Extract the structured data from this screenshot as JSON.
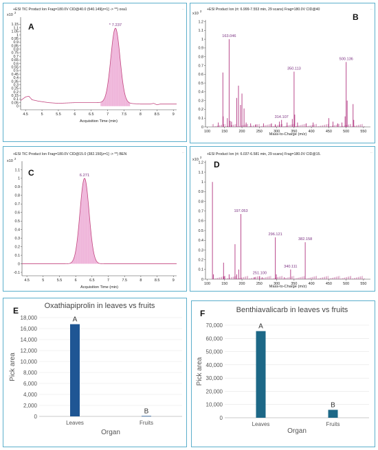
{
  "chart_data": [
    {
      "panel": "A",
      "type": "area",
      "header": "+ESI TIC Product Ion Frag=180.0V CID@40.0 (540.149[z=1] -> **) oxa1",
      "y_multiplier": "x10",
      "y_exponent": "2",
      "xlabel": "Acquisition Time (min)",
      "xlim": [
        4.35,
        9.1
      ],
      "ylim": [
        -0.05,
        1.25
      ],
      "x_ticks": [
        "4.5",
        "5",
        "5.5",
        "6",
        "6.5",
        "7",
        "7.5",
        "8",
        "8.5",
        "9"
      ],
      "y_ticks": [
        "0",
        "0.05",
        "0.1",
        "0.15",
        "0.2",
        "0.25",
        "0.3",
        "0.35",
        "0.4",
        "0.45",
        "0.5",
        "0.55",
        "0.6",
        "0.65",
        "0.7",
        "0.75",
        "0.8",
        "0.85",
        "0.9",
        "0.95",
        "1",
        "1.05",
        "1.1",
        "1.15"
      ],
      "peak_label": "* 7.237",
      "peak": {
        "center": 7.237,
        "height": 1.05,
        "sigma": 0.14
      },
      "baseline": [
        [
          4.35,
          0.08
        ],
        [
          4.5,
          0.13
        ],
        [
          4.6,
          0.14
        ],
        [
          4.7,
          0.09
        ],
        [
          4.9,
          0.07
        ],
        [
          5.2,
          0.05
        ],
        [
          5.5,
          0.04
        ],
        [
          6.0,
          0.05
        ],
        [
          6.5,
          0.05
        ],
        [
          6.9,
          0.05
        ],
        [
          7.6,
          0.04
        ],
        [
          8.0,
          0.03
        ],
        [
          8.3,
          0.03
        ],
        [
          8.4,
          0.04
        ],
        [
          8.5,
          0.02
        ],
        [
          8.6,
          0.03
        ],
        [
          9.1,
          0.03
        ]
      ]
    },
    {
      "panel": "B",
      "type": "bar",
      "header": "+ESI Product Ion (rt: 6.999-7.553 min, 29 scans) Frag=180.0V CID@40",
      "y_multiplier": "x10",
      "y_exponent": "2",
      "xlabel": "Mass-to-Charge (m/z)",
      "xlim": [
        95,
        570
      ],
      "ylim": [
        0,
        1.22
      ],
      "x_ticks": [
        "100",
        "150",
        "200",
        "250",
        "300",
        "350",
        "400",
        "450",
        "500",
        "550"
      ],
      "y_ticks": [
        "0",
        "0.1",
        "0.2",
        "0.3",
        "0.4",
        "0.5",
        "0.6",
        "0.7",
        "0.8",
        "0.9",
        "1",
        "1.1",
        "1.2"
      ],
      "peaks": [
        {
          "mz": 163.046,
          "i": 1.0,
          "label": "163.046"
        },
        {
          "mz": 350.113,
          "i": 0.63,
          "label": "350.113"
        },
        {
          "mz": 314.107,
          "i": 0.08,
          "label": "314.107"
        },
        {
          "mz": 500.136,
          "i": 0.74,
          "label": "500.136"
        },
        {
          "mz": 145.0,
          "i": 0.62
        },
        {
          "mz": 146.0,
          "i": 0.12
        },
        {
          "mz": 132.0,
          "i": 0.05
        },
        {
          "mz": 158.0,
          "i": 0.1
        },
        {
          "mz": 166.0,
          "i": 0.07
        },
        {
          "mz": 170.0,
          "i": 0.06
        },
        {
          "mz": 185.0,
          "i": 0.33
        },
        {
          "mz": 190.0,
          "i": 0.47
        },
        {
          "mz": 196.0,
          "i": 0.25
        },
        {
          "mz": 200.0,
          "i": 0.38
        },
        {
          "mz": 206.0,
          "i": 0.21
        },
        {
          "mz": 212.0,
          "i": 0.05
        },
        {
          "mz": 225.0,
          "i": 0.04
        },
        {
          "mz": 240.0,
          "i": 0.03
        },
        {
          "mz": 262.0,
          "i": 0.04
        },
        {
          "mz": 285.0,
          "i": 0.04
        },
        {
          "mz": 296.0,
          "i": 0.03
        },
        {
          "mz": 308.0,
          "i": 0.06
        },
        {
          "mz": 330.0,
          "i": 0.05
        },
        {
          "mz": 345.0,
          "i": 0.09
        },
        {
          "mz": 352.0,
          "i": 0.14
        },
        {
          "mz": 360.0,
          "i": 0.05
        },
        {
          "mz": 385.0,
          "i": 0.04
        },
        {
          "mz": 405.0,
          "i": 0.05
        },
        {
          "mz": 450.0,
          "i": 0.1
        },
        {
          "mz": 462.0,
          "i": 0.06
        },
        {
          "mz": 476.0,
          "i": 0.04
        },
        {
          "mz": 488.0,
          "i": 0.05
        },
        {
          "mz": 497.0,
          "i": 0.12
        },
        {
          "mz": 503.0,
          "i": 0.3
        },
        {
          "mz": 520.0,
          "i": 0.26
        },
        {
          "mz": 522.0,
          "i": 0.08
        }
      ]
    },
    {
      "panel": "C",
      "type": "area",
      "header": "+ESI TIC Product Ion Frag=180.0V CID@15.0 (382.150[z=1] -> **) BEN",
      "y_multiplier": "x10",
      "y_exponent": "2",
      "xlabel": "Acquisition Time (min)",
      "xlim": [
        4.35,
        9.1
      ],
      "ylim": [
        -0.14,
        1.2
      ],
      "x_ticks": [
        "4.5",
        "5",
        "5.5",
        "6",
        "6.5",
        "7",
        "7.5",
        "8",
        "8.5",
        "9"
      ],
      "y_ticks": [
        "-0.1",
        "0",
        "0.1",
        "0.2",
        "0.3",
        "0.4",
        "0.5",
        "0.6",
        "0.7",
        "0.8",
        "0.9",
        "1",
        "1.1"
      ],
      "peak_label": "6.271",
      "peak": {
        "center": 6.271,
        "height": 1.0,
        "sigma": 0.14
      },
      "baseline": [
        [
          4.35,
          0.0
        ],
        [
          9.1,
          0.0
        ]
      ]
    },
    {
      "panel": "D",
      "type": "bar",
      "header": "+ESI Product Ion (rt: 6.037-6.581 min, 29 scans) Frag=180.0V CID@15.",
      "y_multiplier": "x10",
      "y_exponent": "2",
      "xlabel": "Mass-to-Charge (m/z)",
      "xlim": [
        95,
        570
      ],
      "ylim": [
        0,
        1.22
      ],
      "x_ticks": [
        "100",
        "150",
        "200",
        "250",
        "300",
        "350",
        "400",
        "450",
        "500",
        "550"
      ],
      "y_ticks": [
        "0",
        "0.1",
        "0.2",
        "0.3",
        "0.4",
        "0.5",
        "0.6",
        "0.7",
        "0.8",
        "0.9",
        "1",
        "1.1",
        "1.2"
      ],
      "peaks": [
        {
          "mz": 197.053,
          "i": 0.67,
          "label": "197.053"
        },
        {
          "mz": 296.121,
          "i": 0.43,
          "label": "296.121"
        },
        {
          "mz": 251.1,
          "i": 0.03,
          "label": "251.100"
        },
        {
          "mz": 340.111,
          "i": 0.1,
          "label": "340.111"
        },
        {
          "mz": 382.158,
          "i": 0.38,
          "label": "382.158"
        },
        {
          "mz": 115.0,
          "i": 1.0
        },
        {
          "mz": 118.0,
          "i": 0.05
        },
        {
          "mz": 147.0,
          "i": 0.17
        },
        {
          "mz": 150.0,
          "i": 0.03
        },
        {
          "mz": 163.0,
          "i": 0.05
        },
        {
          "mz": 180.0,
          "i": 0.36
        },
        {
          "mz": 185.0,
          "i": 0.05
        },
        {
          "mz": 191.0,
          "i": 0.1
        },
        {
          "mz": 237.0,
          "i": 0.02
        },
        {
          "mz": 258.0,
          "i": 0.02
        },
        {
          "mz": 299.0,
          "i": 0.05
        },
        {
          "mz": 322.0,
          "i": 0.02
        }
      ]
    },
    {
      "panel": "E",
      "type": "bar",
      "title": "Oxathiapiprolin in leaves vs fruits",
      "xlabel": "Organ",
      "ylabel": "Pick area",
      "categories": [
        "Leaves",
        "Fruits"
      ],
      "values": [
        16800,
        80
      ],
      "letters": [
        "A",
        "B"
      ],
      "ylim": [
        0,
        18000
      ],
      "y_ticks": [
        "0",
        "2,000",
        "4,000",
        "6,000",
        "8,000",
        "10,000",
        "12,000",
        "14,000",
        "16,000",
        "18,000"
      ],
      "bar_color": "#1f5694"
    },
    {
      "panel": "F",
      "type": "bar",
      "title": "Benthiavalicarb in leaves vs fruits",
      "xlabel": "Organ",
      "ylabel": "Pick area",
      "categories": [
        "Leaves",
        "Fruits"
      ],
      "values": [
        65500,
        6000
      ],
      "letters": [
        "A",
        "B"
      ],
      "ylim": [
        0,
        70000
      ],
      "y_ticks": [
        "0",
        "10,000",
        "20,000",
        "30,000",
        "40,000",
        "50,000",
        "60,000",
        "70,000"
      ],
      "bar_color": "#1d6887"
    }
  ],
  "colors": {
    "border": "#5aaecb",
    "spectrum_line": "#b0337f",
    "chromatogram_fill": "#f2bfe0",
    "chromatogram_line": "#c2457f",
    "peak_label": "#7a2f80",
    "panel_letter": "#111111"
  }
}
